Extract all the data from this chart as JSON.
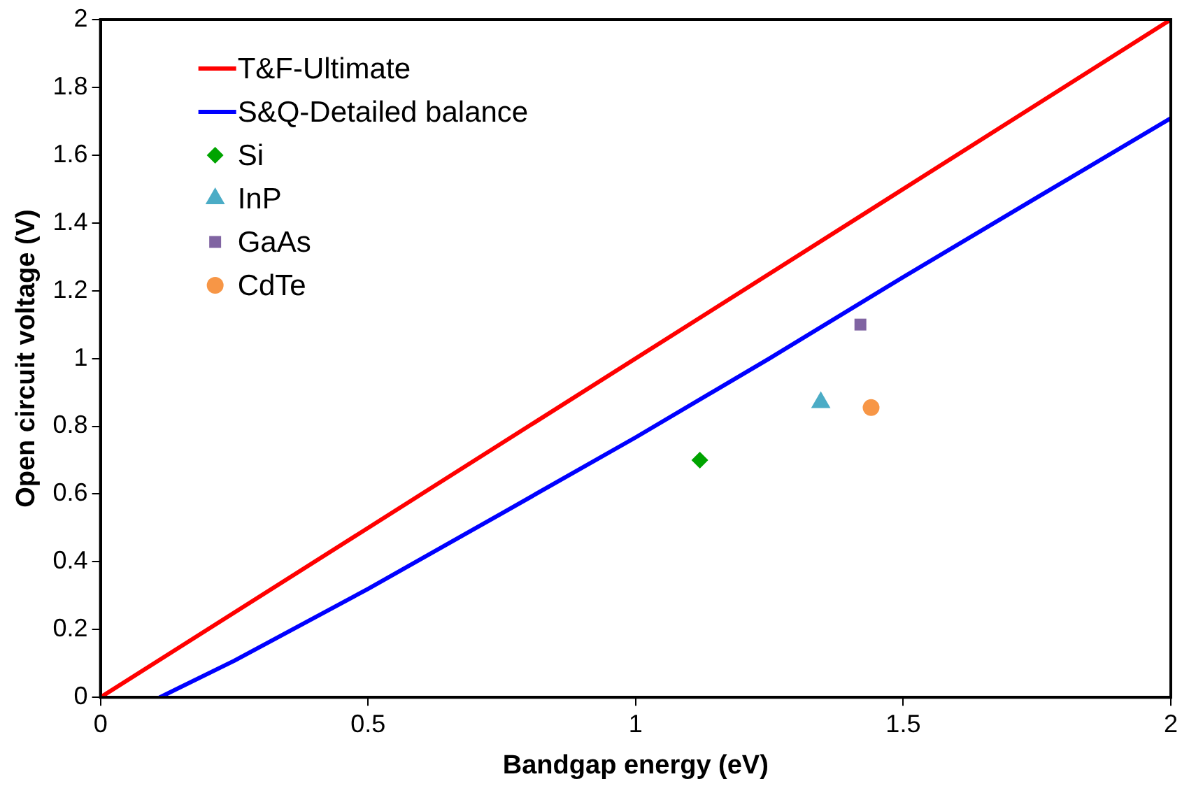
{
  "chart_data": {
    "type": "line",
    "xlabel": "Bandgap energy (eV)",
    "ylabel": "Open circuit voltage (V)",
    "xlim": [
      0,
      2
    ],
    "xticks": [
      0,
      0.5,
      1,
      1.5,
      2
    ],
    "ylim": [
      0,
      2
    ],
    "yticks": [
      0,
      0.2,
      0.4,
      0.6,
      0.8,
      1,
      1.2,
      1.4,
      1.6,
      1.8,
      2
    ],
    "grid": false,
    "legend": "top left",
    "series": [
      {
        "name": "T&F-Ultimate",
        "type": "line",
        "color": "#ff0000",
        "marker": "none",
        "x": [
          0,
          2
        ],
        "values": [
          0,
          2
        ]
      },
      {
        "name": "S&Q-Detailed balance",
        "type": "line",
        "color": "#0000ff",
        "marker": "none",
        "x": [
          0.111,
          0.25,
          0.5,
          0.75,
          1,
          1.25,
          1.5,
          1.75,
          2
        ],
        "values": [
          0,
          0.108,
          0.32,
          0.543,
          0.767,
          1.0,
          1.24,
          1.475,
          1.709
        ]
      },
      {
        "name": "Si",
        "type": "scatter",
        "color": "#00a400",
        "marker": "diamond",
        "x": [
          1.12
        ],
        "values": [
          0.7
        ]
      },
      {
        "name": "InP",
        "type": "scatter",
        "color": "#4bacc6",
        "marker": "triangle",
        "x": [
          1.346
        ],
        "values": [
          0.87
        ]
      },
      {
        "name": "GaAs",
        "type": "scatter",
        "color": "#8064a2",
        "marker": "square",
        "x": [
          1.42
        ],
        "values": [
          1.1
        ]
      },
      {
        "name": "CdTe",
        "type": "scatter",
        "color": "#f79646",
        "marker": "circle",
        "x": [
          1.44
        ],
        "values": [
          0.855
        ]
      }
    ]
  }
}
